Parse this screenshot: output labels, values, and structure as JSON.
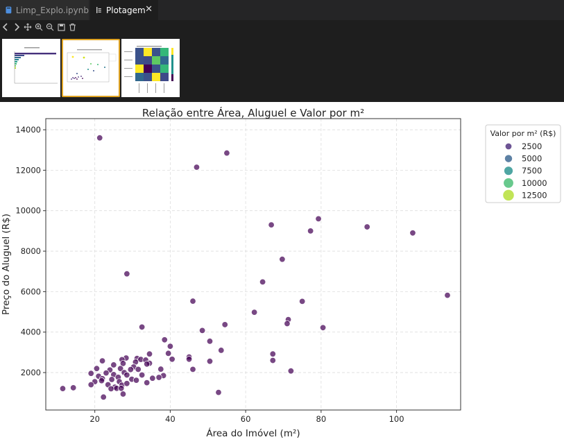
{
  "tabs": [
    {
      "label": "Limp_Explo.ipynb",
      "active": false
    },
    {
      "label": "Plotagem",
      "active": true
    }
  ],
  "colors": {
    "tab_inactive_icon": "#4d8fdf",
    "thumb_selected_border": "#e0a423",
    "viridis_low": "#440154",
    "viridis_high": "#fde725"
  },
  "toolbar": {
    "icons": [
      "chevron-left-icon",
      "chevron-right-icon",
      "pan-icon",
      "zoom-in-icon",
      "zoom-out-icon",
      "save-icon",
      "trash-icon"
    ]
  },
  "chart_data": {
    "type": "scatter",
    "title": "Relação entre Área, Aluguel e Valor por m²",
    "xlabel": "Área do Imóvel (m²)",
    "ylabel": "Preço do Aluguel (R$)",
    "xlim": [
      7,
      117
    ],
    "ylim": [
      150,
      14550
    ],
    "xticks": [
      20,
      40,
      60,
      80,
      100
    ],
    "yticks": [
      2000,
      4000,
      6000,
      8000,
      10000,
      12000,
      14000
    ],
    "grid": true,
    "colormap": "viridis",
    "hue_range": [
      1000,
      14000
    ],
    "legend": {
      "title": "Valor por m² (R$)",
      "placement": "outside-top-right",
      "entries": [
        "2500",
        "5000",
        "7500",
        "10000",
        "12500"
      ],
      "entry_values": [
        2500,
        5000,
        7500,
        10000,
        12500
      ]
    },
    "points": [
      {
        "x": 21.3,
        "y": 13600
      },
      {
        "x": 55,
        "y": 12850
      },
      {
        "x": 47,
        "y": 12150
      },
      {
        "x": 79.3,
        "y": 9600
      },
      {
        "x": 66.8,
        "y": 9300
      },
      {
        "x": 92.2,
        "y": 9200
      },
      {
        "x": 77.2,
        "y": 9000
      },
      {
        "x": 104.3,
        "y": 8900
      },
      {
        "x": 69.7,
        "y": 7600
      },
      {
        "x": 28.5,
        "y": 6880
      },
      {
        "x": 64.5,
        "y": 6480
      },
      {
        "x": 113.5,
        "y": 5820
      },
      {
        "x": 46,
        "y": 5530
      },
      {
        "x": 75,
        "y": 5520
      },
      {
        "x": 62.3,
        "y": 4980
      },
      {
        "x": 71.3,
        "y": 4620
      },
      {
        "x": 71,
        "y": 4420
      },
      {
        "x": 54.5,
        "y": 4370
      },
      {
        "x": 80.5,
        "y": 4220
      },
      {
        "x": 32.5,
        "y": 4250
      },
      {
        "x": 48.5,
        "y": 4080
      },
      {
        "x": 38.5,
        "y": 3620
      },
      {
        "x": 50.5,
        "y": 3550
      },
      {
        "x": 40,
        "y": 3300
      },
      {
        "x": 53.5,
        "y": 3100
      },
      {
        "x": 39.5,
        "y": 2950
      },
      {
        "x": 34.5,
        "y": 2920
      },
      {
        "x": 67.2,
        "y": 2920
      },
      {
        "x": 45,
        "y": 2770
      },
      {
        "x": 45,
        "y": 2660
      },
      {
        "x": 40.5,
        "y": 2660
      },
      {
        "x": 28.3,
        "y": 2720
      },
      {
        "x": 31.2,
        "y": 2700
      },
      {
        "x": 32.2,
        "y": 2650
      },
      {
        "x": 33.5,
        "y": 2620
      },
      {
        "x": 27.2,
        "y": 2640
      },
      {
        "x": 22,
        "y": 2580
      },
      {
        "x": 30.8,
        "y": 2520
      },
      {
        "x": 34.5,
        "y": 2460
      },
      {
        "x": 25,
        "y": 2380
      },
      {
        "x": 27.5,
        "y": 2450
      },
      {
        "x": 33.8,
        "y": 2420
      },
      {
        "x": 50.5,
        "y": 2560
      },
      {
        "x": 67.2,
        "y": 2600
      },
      {
        "x": 30.3,
        "y": 2280
      },
      {
        "x": 20.5,
        "y": 2200
      },
      {
        "x": 26.8,
        "y": 2200
      },
      {
        "x": 29.5,
        "y": 2150
      },
      {
        "x": 31.5,
        "y": 2160
      },
      {
        "x": 37.5,
        "y": 2170
      },
      {
        "x": 24,
        "y": 2130
      },
      {
        "x": 46,
        "y": 2160
      },
      {
        "x": 72,
        "y": 2080
      },
      {
        "x": 19,
        "y": 1960
      },
      {
        "x": 23,
        "y": 1980
      },
      {
        "x": 27.8,
        "y": 2000
      },
      {
        "x": 25,
        "y": 1900
      },
      {
        "x": 28.5,
        "y": 1880
      },
      {
        "x": 21,
        "y": 1820
      },
      {
        "x": 32.5,
        "y": 1880
      },
      {
        "x": 38.2,
        "y": 1850
      },
      {
        "x": 35.3,
        "y": 1720
      },
      {
        "x": 26.2,
        "y": 1770
      },
      {
        "x": 22,
        "y": 1700
      },
      {
        "x": 24.5,
        "y": 1660
      },
      {
        "x": 29.8,
        "y": 1670
      },
      {
        "x": 31,
        "y": 1620
      },
      {
        "x": 21.8,
        "y": 1600
      },
      {
        "x": 37,
        "y": 1760
      },
      {
        "x": 26.5,
        "y": 1550
      },
      {
        "x": 20,
        "y": 1550
      },
      {
        "x": 33.8,
        "y": 1500
      },
      {
        "x": 19,
        "y": 1400
      },
      {
        "x": 23.5,
        "y": 1400
      },
      {
        "x": 27.2,
        "y": 1380
      },
      {
        "x": 28.5,
        "y": 1460
      },
      {
        "x": 25.3,
        "y": 1280
      },
      {
        "x": 24.3,
        "y": 1200
      },
      {
        "x": 25.8,
        "y": 1220
      },
      {
        "x": 27,
        "y": 1220
      },
      {
        "x": 11.5,
        "y": 1210
      },
      {
        "x": 14.3,
        "y": 1250
      },
      {
        "x": 27.5,
        "y": 940
      },
      {
        "x": 22.3,
        "y": 790
      },
      {
        "x": 52.8,
        "y": 1020
      }
    ]
  }
}
